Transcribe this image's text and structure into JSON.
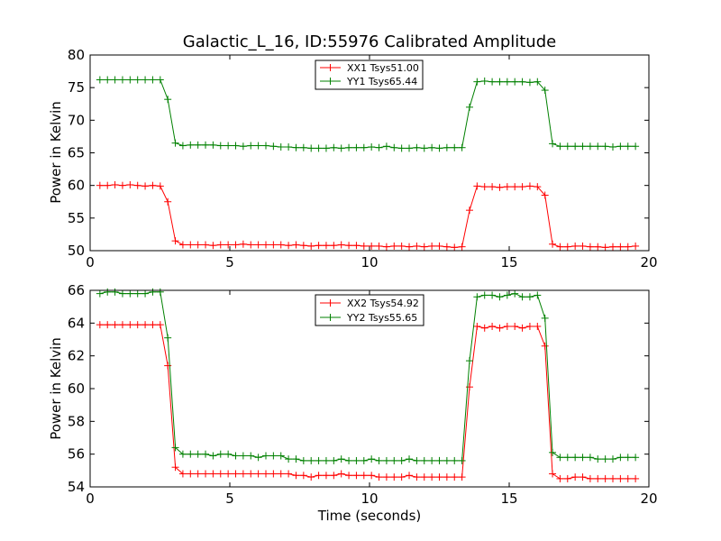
{
  "colors": {
    "xx": "#ff0000",
    "yy": "#008000",
    "axis": "#000000",
    "background": "#ffffff"
  },
  "chart_data": [
    {
      "type": "line",
      "title": "Galactic_L_16, ID:55976 Calibrated Amplitude",
      "xlabel": "",
      "ylabel": "Power in Kelvin",
      "xlim": [
        0,
        20
      ],
      "ylim": [
        50,
        80
      ],
      "xticks": [
        0,
        5,
        10,
        15,
        20
      ],
      "yticks": [
        50,
        55,
        60,
        65,
        70,
        75,
        80
      ],
      "xtick_labels": [
        "0",
        "5",
        "10",
        "15",
        "20"
      ],
      "ytick_labels": [
        "50",
        "55",
        "60",
        "65",
        "70",
        "75",
        "80"
      ],
      "grid": false,
      "legend_position": "top-center",
      "series": [
        {
          "name": "XX1 Tsys51.00",
          "color": "#ff0000",
          "marker": "+",
          "x": [
            0.35,
            0.62,
            0.89,
            1.16,
            1.43,
            1.7,
            1.97,
            2.24,
            2.51,
            2.78,
            3.05,
            3.32,
            3.59,
            3.86,
            4.13,
            4.4,
            4.67,
            4.94,
            5.21,
            5.48,
            5.75,
            6.02,
            6.29,
            6.56,
            6.83,
            7.1,
            7.37,
            7.64,
            7.91,
            8.18,
            8.45,
            8.72,
            8.99,
            9.26,
            9.53,
            9.8,
            10.07,
            10.34,
            10.61,
            10.88,
            11.15,
            11.42,
            11.69,
            11.96,
            12.23,
            12.5,
            12.77,
            13.04,
            13.31,
            13.58,
            13.85,
            14.12,
            14.39,
            14.66,
            14.93,
            15.2,
            15.47,
            15.74,
            16.01,
            16.28,
            16.55,
            16.82,
            17.09,
            17.36,
            17.63,
            17.9,
            18.17,
            18.44,
            18.71,
            18.98,
            19.25,
            19.52
          ],
          "y": [
            60.0,
            60.0,
            60.1,
            60.0,
            60.1,
            60.0,
            59.9,
            60.0,
            59.9,
            57.5,
            51.5,
            50.9,
            50.9,
            50.9,
            50.9,
            50.8,
            50.9,
            50.9,
            50.9,
            51.0,
            50.9,
            50.9,
            50.9,
            50.9,
            50.9,
            50.8,
            50.9,
            50.8,
            50.7,
            50.8,
            50.8,
            50.8,
            50.9,
            50.8,
            50.8,
            50.7,
            50.7,
            50.7,
            50.6,
            50.7,
            50.7,
            50.6,
            50.7,
            50.6,
            50.7,
            50.7,
            50.6,
            50.5,
            50.6,
            56.2,
            59.9,
            59.8,
            59.8,
            59.7,
            59.8,
            59.8,
            59.8,
            59.9,
            59.8,
            58.5,
            51.0,
            50.6,
            50.6,
            50.7,
            50.7,
            50.6,
            50.6,
            50.5,
            50.6,
            50.6,
            50.6,
            50.7
          ]
        },
        {
          "name": "YY1 Tsys65.44",
          "color": "#008000",
          "marker": "+",
          "x": [
            0.35,
            0.62,
            0.89,
            1.16,
            1.43,
            1.7,
            1.97,
            2.24,
            2.51,
            2.78,
            3.05,
            3.32,
            3.59,
            3.86,
            4.13,
            4.4,
            4.67,
            4.94,
            5.21,
            5.48,
            5.75,
            6.02,
            6.29,
            6.56,
            6.83,
            7.1,
            7.37,
            7.64,
            7.91,
            8.18,
            8.45,
            8.72,
            8.99,
            9.26,
            9.53,
            9.8,
            10.07,
            10.34,
            10.61,
            10.88,
            11.15,
            11.42,
            11.69,
            11.96,
            12.23,
            12.5,
            12.77,
            13.04,
            13.31,
            13.58,
            13.85,
            14.12,
            14.39,
            14.66,
            14.93,
            15.2,
            15.47,
            15.74,
            16.01,
            16.28,
            16.55,
            16.82,
            17.09,
            17.36,
            17.63,
            17.9,
            18.17,
            18.44,
            18.71,
            18.98,
            19.25,
            19.52
          ],
          "y": [
            76.2,
            76.2,
            76.2,
            76.2,
            76.2,
            76.2,
            76.2,
            76.2,
            76.2,
            73.2,
            66.5,
            66.1,
            66.2,
            66.2,
            66.2,
            66.2,
            66.1,
            66.1,
            66.1,
            66.0,
            66.1,
            66.1,
            66.1,
            66.0,
            65.9,
            65.9,
            65.8,
            65.8,
            65.7,
            65.7,
            65.7,
            65.8,
            65.7,
            65.8,
            65.8,
            65.8,
            65.9,
            65.8,
            66.0,
            65.8,
            65.7,
            65.7,
            65.8,
            65.7,
            65.8,
            65.7,
            65.8,
            65.8,
            65.8,
            72.0,
            75.9,
            76.0,
            75.9,
            75.9,
            75.9,
            75.9,
            75.9,
            75.8,
            75.9,
            74.6,
            66.4,
            66.0,
            66.0,
            66.0,
            66.0,
            66.0,
            66.0,
            66.0,
            65.9,
            66.0,
            66.0,
            66.0
          ]
        }
      ]
    },
    {
      "type": "line",
      "title": "",
      "xlabel": "Time (seconds)",
      "ylabel": "Power in Kelvin",
      "xlim": [
        0,
        20
      ],
      "ylim": [
        54,
        66
      ],
      "xticks": [
        0,
        5,
        10,
        15,
        20
      ],
      "yticks": [
        54,
        56,
        58,
        60,
        62,
        64,
        66
      ],
      "xtick_labels": [
        "0",
        "5",
        "10",
        "15",
        "20"
      ],
      "ytick_labels": [
        "54",
        "56",
        "58",
        "60",
        "62",
        "64",
        "66"
      ],
      "grid": false,
      "legend_position": "top-center",
      "series": [
        {
          "name": "XX2 Tsys54.92",
          "color": "#ff0000",
          "marker": "+",
          "x": [
            0.35,
            0.62,
            0.89,
            1.16,
            1.43,
            1.7,
            1.97,
            2.24,
            2.51,
            2.78,
            3.05,
            3.32,
            3.59,
            3.86,
            4.13,
            4.4,
            4.67,
            4.94,
            5.21,
            5.48,
            5.75,
            6.02,
            6.29,
            6.56,
            6.83,
            7.1,
            7.37,
            7.64,
            7.91,
            8.18,
            8.45,
            8.72,
            8.99,
            9.26,
            9.53,
            9.8,
            10.07,
            10.34,
            10.61,
            10.88,
            11.15,
            11.42,
            11.69,
            11.96,
            12.23,
            12.5,
            12.77,
            13.04,
            13.31,
            13.58,
            13.85,
            14.12,
            14.39,
            14.66,
            14.93,
            15.2,
            15.47,
            15.74,
            16.01,
            16.28,
            16.55,
            16.82,
            17.09,
            17.36,
            17.63,
            17.9,
            18.17,
            18.44,
            18.71,
            18.98,
            19.25,
            19.52
          ],
          "y": [
            63.9,
            63.9,
            63.9,
            63.9,
            63.9,
            63.9,
            63.9,
            63.9,
            63.9,
            61.4,
            55.2,
            54.8,
            54.8,
            54.8,
            54.8,
            54.8,
            54.8,
            54.8,
            54.8,
            54.8,
            54.8,
            54.8,
            54.8,
            54.8,
            54.8,
            54.8,
            54.7,
            54.7,
            54.6,
            54.7,
            54.7,
            54.7,
            54.8,
            54.7,
            54.7,
            54.7,
            54.7,
            54.6,
            54.6,
            54.6,
            54.6,
            54.7,
            54.6,
            54.6,
            54.6,
            54.6,
            54.6,
            54.6,
            54.6,
            60.1,
            63.8,
            63.7,
            63.8,
            63.7,
            63.8,
            63.8,
            63.7,
            63.8,
            63.8,
            62.6,
            54.8,
            54.5,
            54.5,
            54.6,
            54.6,
            54.5,
            54.5,
            54.5,
            54.5,
            54.5,
            54.5,
            54.5
          ]
        },
        {
          "name": "YY2 Tsys55.65",
          "color": "#008000",
          "marker": "+",
          "x": [
            0.35,
            0.62,
            0.89,
            1.16,
            1.43,
            1.7,
            1.97,
            2.24,
            2.51,
            2.78,
            3.05,
            3.32,
            3.59,
            3.86,
            4.13,
            4.4,
            4.67,
            4.94,
            5.21,
            5.48,
            5.75,
            6.02,
            6.29,
            6.56,
            6.83,
            7.1,
            7.37,
            7.64,
            7.91,
            8.18,
            8.45,
            8.72,
            8.99,
            9.26,
            9.53,
            9.8,
            10.07,
            10.34,
            10.61,
            10.88,
            11.15,
            11.42,
            11.69,
            11.96,
            12.23,
            12.5,
            12.77,
            13.04,
            13.31,
            13.58,
            13.85,
            14.12,
            14.39,
            14.66,
            14.93,
            15.2,
            15.47,
            15.74,
            16.01,
            16.28,
            16.55,
            16.82,
            17.09,
            17.36,
            17.63,
            17.9,
            18.17,
            18.44,
            18.71,
            18.98,
            19.25,
            19.52
          ],
          "y": [
            65.8,
            65.9,
            65.9,
            65.8,
            65.8,
            65.8,
            65.8,
            65.9,
            65.9,
            63.1,
            56.4,
            56.0,
            56.0,
            56.0,
            56.0,
            55.9,
            56.0,
            56.0,
            55.9,
            55.9,
            55.9,
            55.8,
            55.9,
            55.9,
            55.9,
            55.7,
            55.7,
            55.6,
            55.6,
            55.6,
            55.6,
            55.6,
            55.7,
            55.6,
            55.6,
            55.6,
            55.7,
            55.6,
            55.6,
            55.6,
            55.6,
            55.7,
            55.6,
            55.6,
            55.6,
            55.6,
            55.6,
            55.6,
            55.6,
            61.7,
            65.6,
            65.7,
            65.7,
            65.6,
            65.7,
            65.8,
            65.6,
            65.6,
            65.7,
            64.3,
            56.1,
            55.8,
            55.8,
            55.8,
            55.8,
            55.8,
            55.7,
            55.7,
            55.7,
            55.8,
            55.8,
            55.8
          ]
        }
      ]
    }
  ]
}
